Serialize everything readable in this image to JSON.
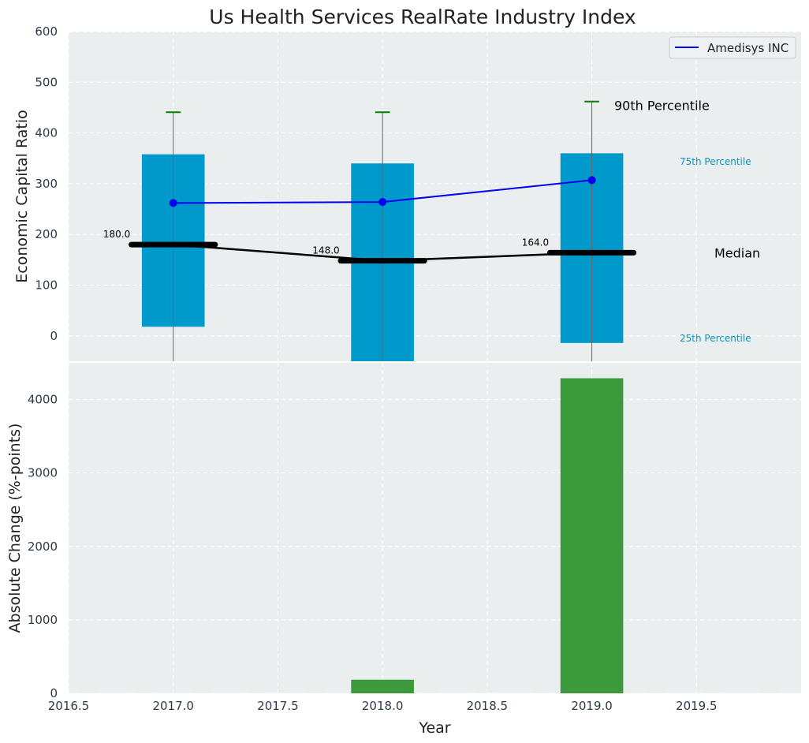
{
  "title": "Us Health Services RealRate Industry Index",
  "colors": {
    "panel_bg": "#eaeeef",
    "grid": "#ffffff",
    "box": "#0099cc",
    "whisker_cap": "#008000",
    "whisker_line": "#666666",
    "median": "#000000",
    "company": "#0000ee",
    "change_bar": "#3c9a3c",
    "tick_text": "#2b3a4a",
    "annotation_cyan": "#0099cc"
  },
  "chart_data": [
    {
      "type": "box",
      "ylabel": "Economic Capital Ratio",
      "xlim": [
        2016.5,
        2020.0
      ],
      "ylim": [
        -50,
        600
      ],
      "yticks": [
        0,
        100,
        200,
        300,
        400,
        500,
        600
      ],
      "grid": true,
      "legend": {
        "placement": "top-right",
        "entries": [
          "Amedisys INC"
        ]
      },
      "years": [
        2017.0,
        2018.0,
        2019.0
      ],
      "p25": [
        18,
        -50,
        -14
      ],
      "p75": [
        358,
        340,
        360
      ],
      "p90": [
        441,
        441,
        462
      ],
      "median": [
        180.0,
        148.0,
        164.0
      ],
      "median_labels": [
        "180.0",
        "148.0",
        "164.0"
      ],
      "series": [
        {
          "name": "Amedisys INC",
          "values": [
            262,
            264,
            307
          ]
        }
      ],
      "annotations": {
        "p90": "90th Percentile",
        "p75": "75th Percentile",
        "median": "Median",
        "p25": "25th Percentile"
      }
    },
    {
      "type": "bar",
      "xlabel": "Year",
      "ylabel": "Absolute Change (%-points)",
      "xlim": [
        2016.5,
        2020.0
      ],
      "ylim": [
        0,
        4500
      ],
      "yticks": [
        0,
        1000,
        2000,
        3000,
        4000
      ],
      "xticks": [
        2016.5,
        2017.0,
        2017.5,
        2018.0,
        2018.5,
        2019.0,
        2019.5
      ],
      "xtick_labels": [
        "2016.5",
        "2017.0",
        "2017.5",
        "2018.0",
        "2018.5",
        "2019.0",
        "2019.5"
      ],
      "grid": true,
      "categories": [
        2018.0,
        2019.0
      ],
      "values": [
        185,
        4290
      ]
    }
  ]
}
